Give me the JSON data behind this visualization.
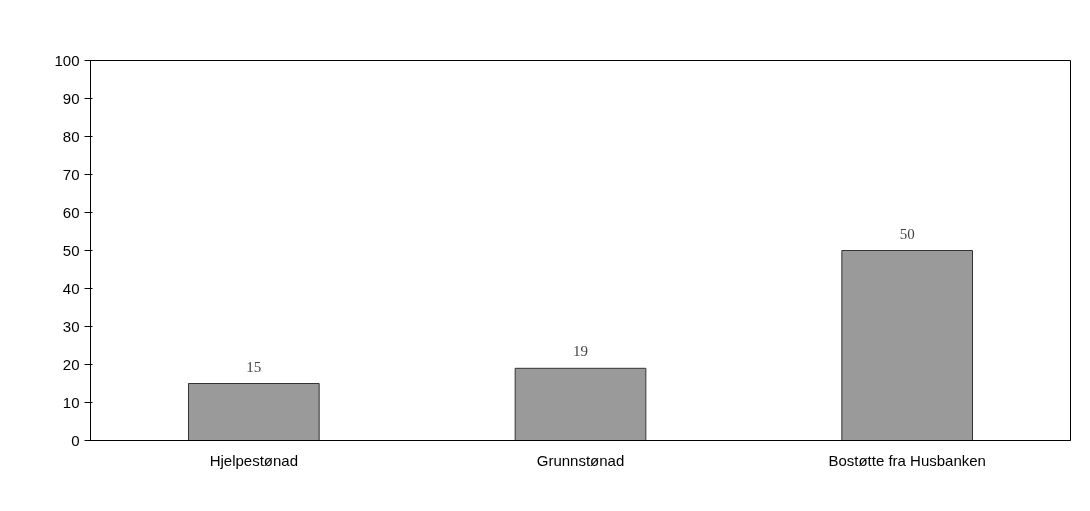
{
  "chart_data": {
    "type": "bar",
    "categories": [
      "Hjelpestønad",
      "Grunnstønad",
      "Bostøtte fra Husbanken"
    ],
    "values": [
      15,
      19,
      50
    ],
    "color": "#9a9a9a",
    "ylim": [
      0,
      100
    ],
    "yticks": [
      0,
      10,
      20,
      30,
      40,
      50,
      60,
      70,
      80,
      90,
      100
    ],
    "grid": false,
    "data_labels": true
  }
}
